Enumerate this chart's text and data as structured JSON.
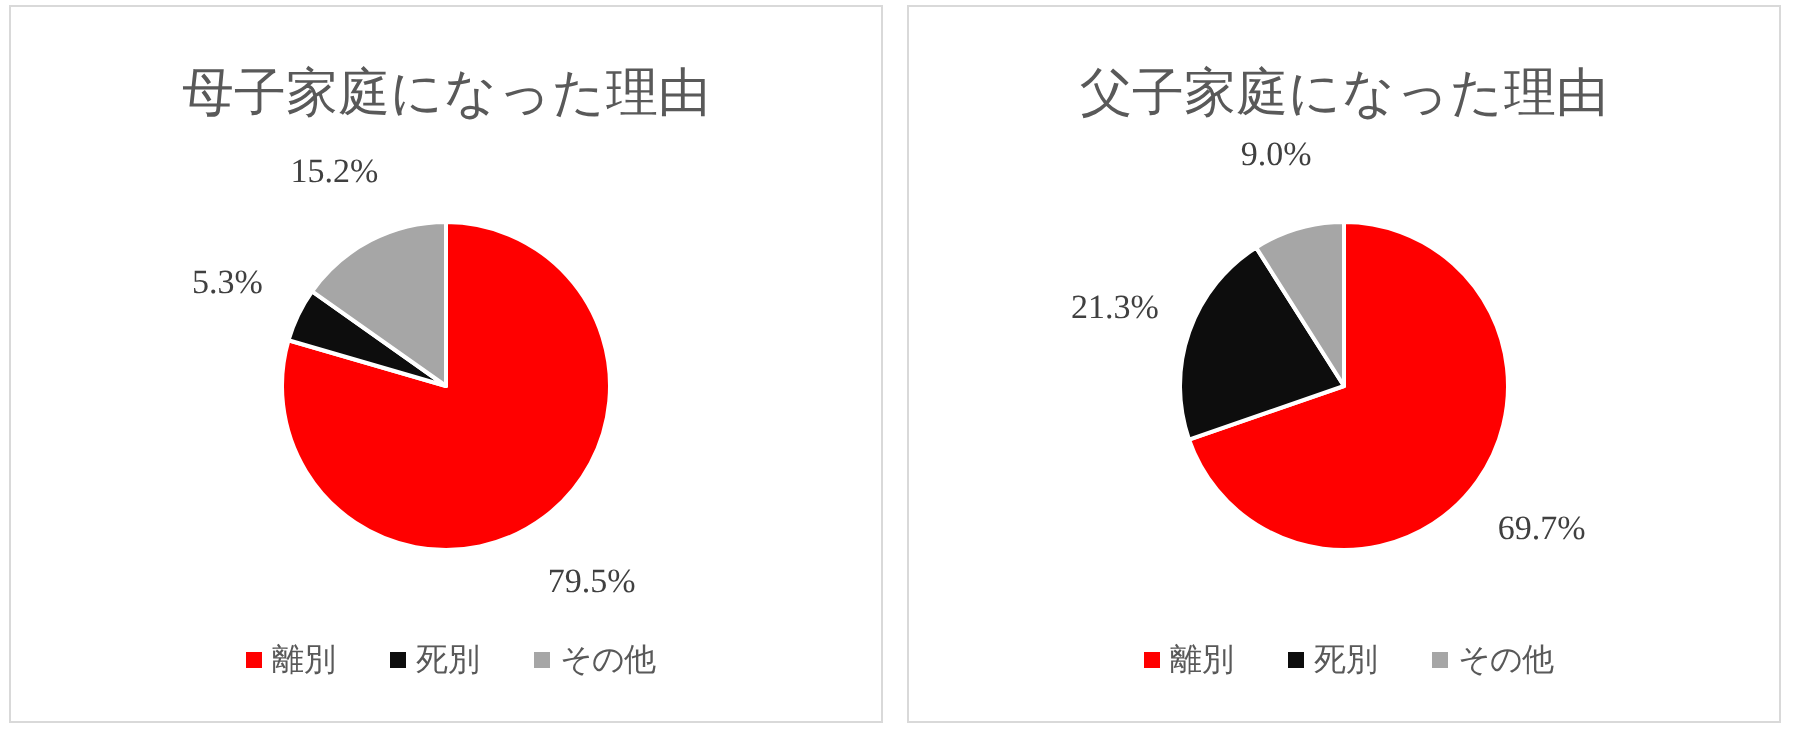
{
  "chart_data": [
    {
      "type": "pie",
      "title": "母子家庭になった理由",
      "categories": [
        "離別",
        "死別",
        "その他"
      ],
      "values": [
        79.5,
        5.3,
        15.2
      ],
      "value_labels": [
        "79.5%",
        "5.3%",
        "15.2%"
      ],
      "colors": [
        "#ff0000",
        "#0d0d0d",
        "#a6a6a6"
      ],
      "legend": "bottom"
    },
    {
      "type": "pie",
      "title": "父子家庭になった理由",
      "categories": [
        "離別",
        "死別",
        "その他"
      ],
      "values": [
        69.7,
        21.3,
        9.0
      ],
      "value_labels": [
        "69.7%",
        "21.3%",
        "9.0%"
      ],
      "colors": [
        "#ff0000",
        "#0d0d0d",
        "#a6a6a6"
      ],
      "legend": "bottom"
    }
  ]
}
